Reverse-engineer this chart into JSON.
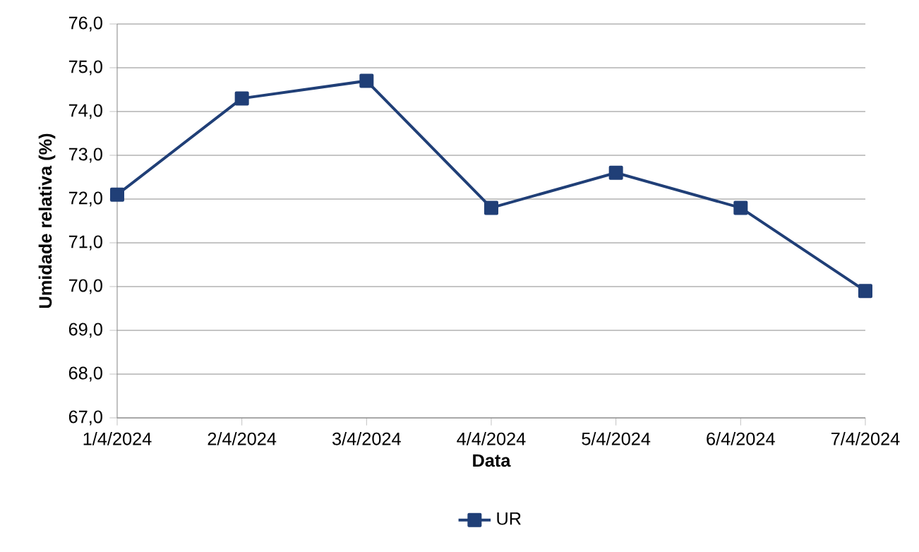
{
  "chart_data": {
    "type": "line",
    "xlabel": "Data",
    "ylabel": "Umidade relativa (%)",
    "categories": [
      "1/4/2024",
      "2/4/2024",
      "3/4/2024",
      "4/4/2024",
      "5/4/2024",
      "6/4/2024",
      "7/4/2024"
    ],
    "series": [
      {
        "name": "UR",
        "color": "#203f77",
        "values": [
          72.1,
          74.3,
          74.7,
          71.8,
          72.6,
          71.8,
          69.9
        ]
      }
    ],
    "ylim": [
      67,
      76
    ],
    "yticks": [
      {
        "value": 67,
        "label": "67,0"
      },
      {
        "value": 68,
        "label": "68,0"
      },
      {
        "value": 69,
        "label": "69,0"
      },
      {
        "value": 70,
        "label": "70,0"
      },
      {
        "value": 71,
        "label": "71,0"
      },
      {
        "value": 72,
        "label": "72,0"
      },
      {
        "value": 73,
        "label": "73,0"
      },
      {
        "value": 74,
        "label": "74,0"
      },
      {
        "value": 75,
        "label": "75,0"
      },
      {
        "value": 76,
        "label": "76,0"
      }
    ],
    "grid": "y",
    "legend": "bottom",
    "marker": "square",
    "line_style": "solid"
  }
}
